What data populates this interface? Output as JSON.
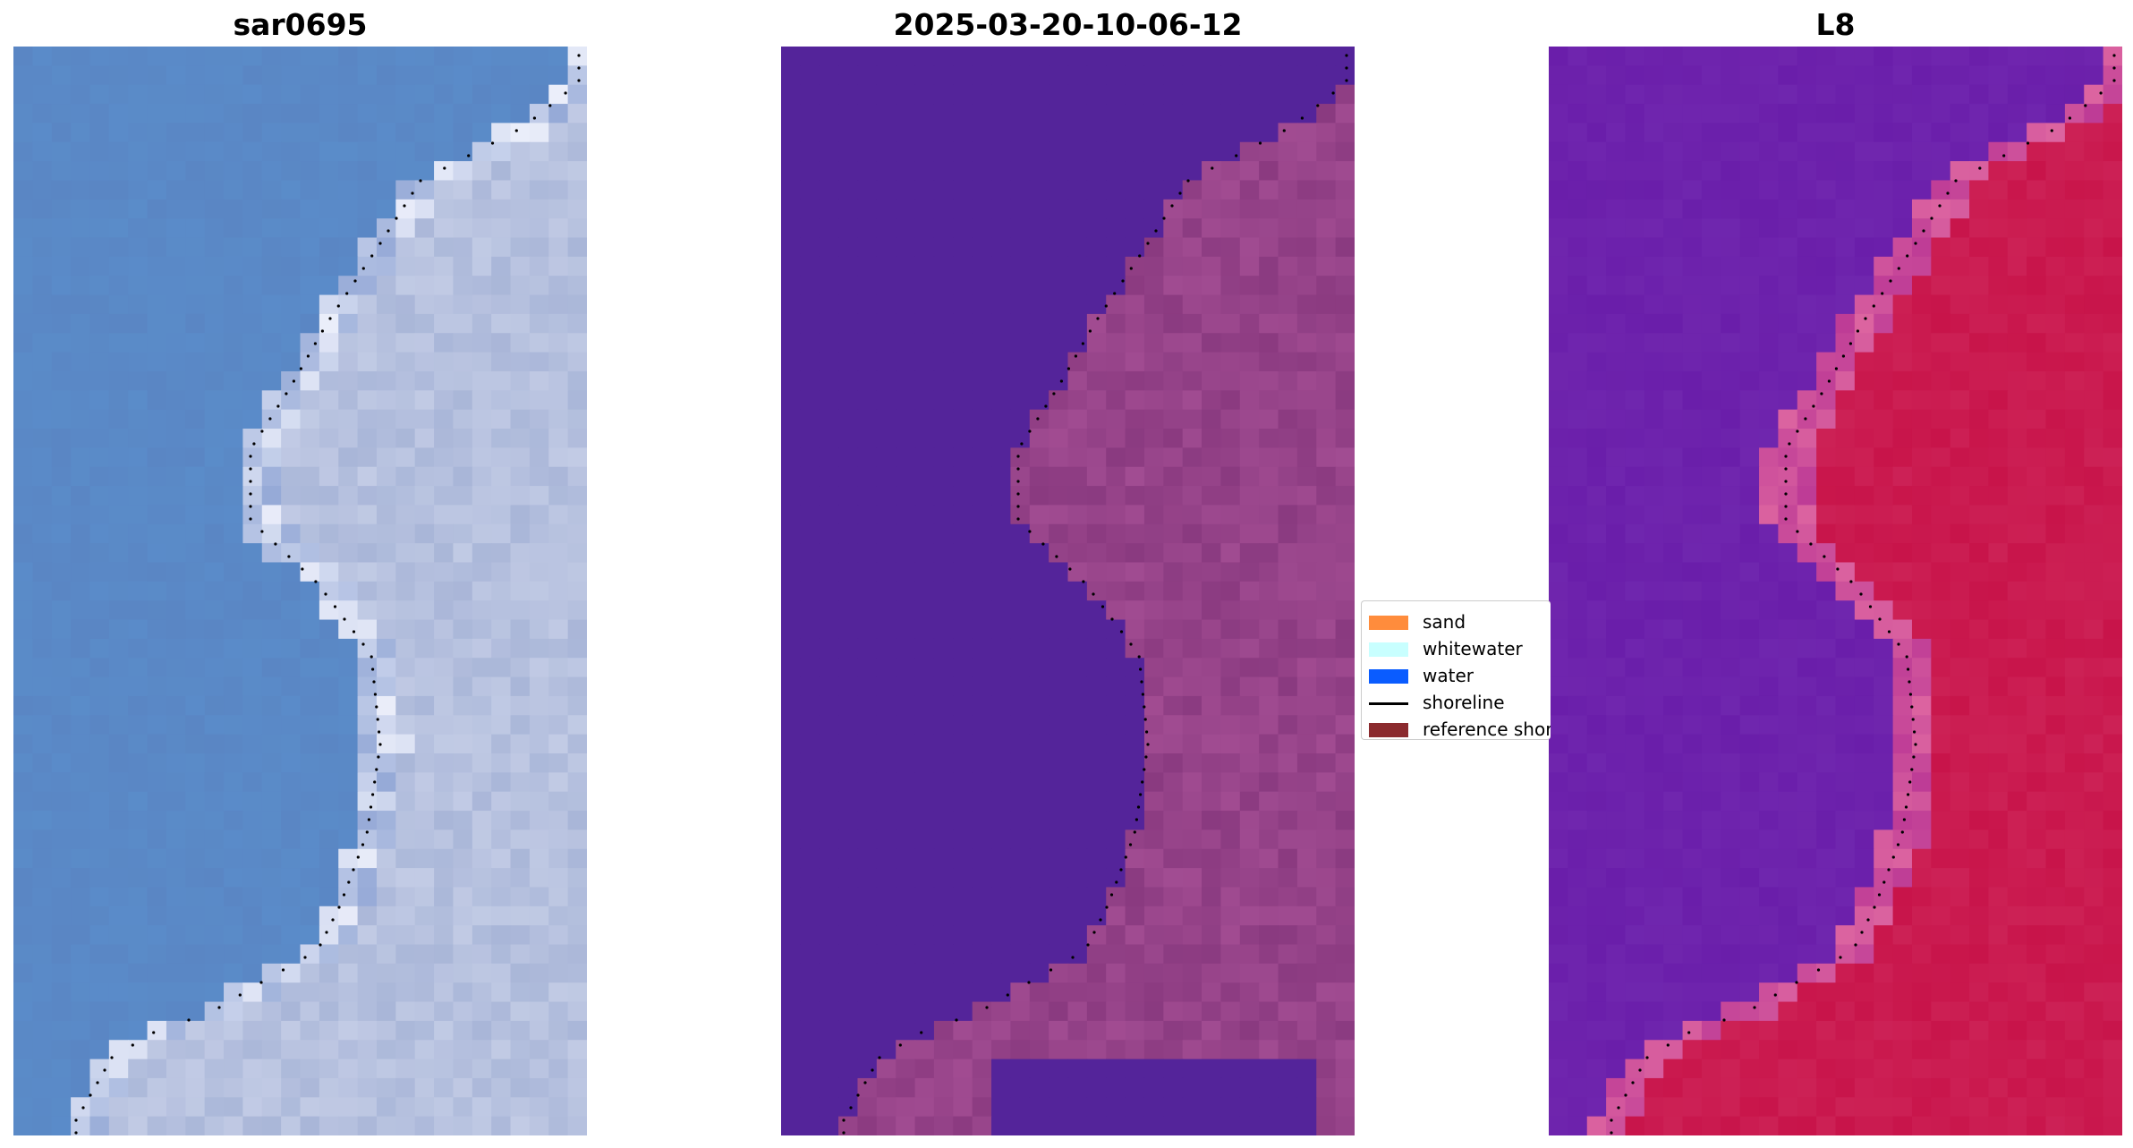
{
  "panels": [
    {
      "id": "rgb",
      "title": "sar0695"
    },
    {
      "id": "classified",
      "title": "2025-03-20-10-06-12"
    },
    {
      "id": "index",
      "title": "L8"
    }
  ],
  "legend": {
    "items": [
      {
        "label": "sand",
        "color": "#ff8c3c",
        "kind": "patch"
      },
      {
        "label": "whitewater",
        "color": "#c8ffff",
        "kind": "patch"
      },
      {
        "label": "water",
        "color": "#0a5cff",
        "kind": "patch"
      },
      {
        "label": "shoreline",
        "color": "#000000",
        "kind": "line"
      },
      {
        "label": "reference shoreline",
        "color": "#8b2a2e",
        "kind": "patch"
      }
    ]
  },
  "colors": {
    "rgb_water": "#5a86c4",
    "rgb_land": "#a9b6d8",
    "class_water": "#54249a",
    "class_land": "#8a3a80",
    "index_water": "#6a1eaa",
    "index_land": "#c8144a",
    "shoreline_dots": "#000000"
  }
}
